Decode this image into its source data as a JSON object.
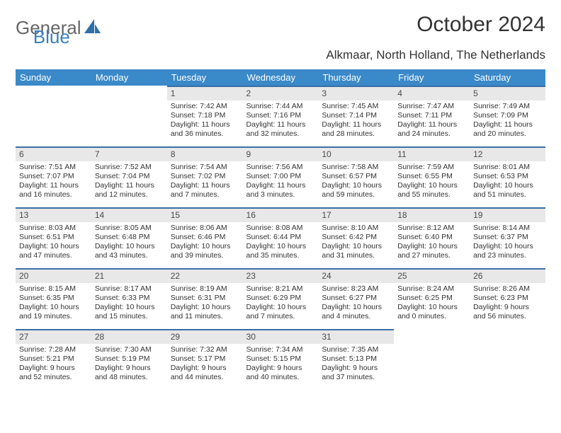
{
  "brand": {
    "part1": "General",
    "part2": "Blue"
  },
  "title": "October 2024",
  "location": "Alkmaar, North Holland, The Netherlands",
  "colors": {
    "header_bg": "#3a89c9",
    "header_text": "#ffffff",
    "daynum_bg": "#e8e8e8",
    "daynum_border": "#3a6fa5",
    "body_text": "#333333",
    "page_bg": "#ffffff"
  },
  "weekdays": [
    "Sunday",
    "Monday",
    "Tuesday",
    "Wednesday",
    "Thursday",
    "Friday",
    "Saturday"
  ],
  "weeks": [
    [
      {
        "n": "",
        "sr": "",
        "ss": "",
        "dl": ""
      },
      {
        "n": "",
        "sr": "",
        "ss": "",
        "dl": ""
      },
      {
        "n": "1",
        "sr": "7:42 AM",
        "ss": "7:18 PM",
        "dl": "11 hours and 36 minutes."
      },
      {
        "n": "2",
        "sr": "7:44 AM",
        "ss": "7:16 PM",
        "dl": "11 hours and 32 minutes."
      },
      {
        "n": "3",
        "sr": "7:45 AM",
        "ss": "7:14 PM",
        "dl": "11 hours and 28 minutes."
      },
      {
        "n": "4",
        "sr": "7:47 AM",
        "ss": "7:11 PM",
        "dl": "11 hours and 24 minutes."
      },
      {
        "n": "5",
        "sr": "7:49 AM",
        "ss": "7:09 PM",
        "dl": "11 hours and 20 minutes."
      }
    ],
    [
      {
        "n": "6",
        "sr": "7:51 AM",
        "ss": "7:07 PM",
        "dl": "11 hours and 16 minutes."
      },
      {
        "n": "7",
        "sr": "7:52 AM",
        "ss": "7:04 PM",
        "dl": "11 hours and 12 minutes."
      },
      {
        "n": "8",
        "sr": "7:54 AM",
        "ss": "7:02 PM",
        "dl": "11 hours and 7 minutes."
      },
      {
        "n": "9",
        "sr": "7:56 AM",
        "ss": "7:00 PM",
        "dl": "11 hours and 3 minutes."
      },
      {
        "n": "10",
        "sr": "7:58 AM",
        "ss": "6:57 PM",
        "dl": "10 hours and 59 minutes."
      },
      {
        "n": "11",
        "sr": "7:59 AM",
        "ss": "6:55 PM",
        "dl": "10 hours and 55 minutes."
      },
      {
        "n": "12",
        "sr": "8:01 AM",
        "ss": "6:53 PM",
        "dl": "10 hours and 51 minutes."
      }
    ],
    [
      {
        "n": "13",
        "sr": "8:03 AM",
        "ss": "6:51 PM",
        "dl": "10 hours and 47 minutes."
      },
      {
        "n": "14",
        "sr": "8:05 AM",
        "ss": "6:48 PM",
        "dl": "10 hours and 43 minutes."
      },
      {
        "n": "15",
        "sr": "8:06 AM",
        "ss": "6:46 PM",
        "dl": "10 hours and 39 minutes."
      },
      {
        "n": "16",
        "sr": "8:08 AM",
        "ss": "6:44 PM",
        "dl": "10 hours and 35 minutes."
      },
      {
        "n": "17",
        "sr": "8:10 AM",
        "ss": "6:42 PM",
        "dl": "10 hours and 31 minutes."
      },
      {
        "n": "18",
        "sr": "8:12 AM",
        "ss": "6:40 PM",
        "dl": "10 hours and 27 minutes."
      },
      {
        "n": "19",
        "sr": "8:14 AM",
        "ss": "6:37 PM",
        "dl": "10 hours and 23 minutes."
      }
    ],
    [
      {
        "n": "20",
        "sr": "8:15 AM",
        "ss": "6:35 PM",
        "dl": "10 hours and 19 minutes."
      },
      {
        "n": "21",
        "sr": "8:17 AM",
        "ss": "6:33 PM",
        "dl": "10 hours and 15 minutes."
      },
      {
        "n": "22",
        "sr": "8:19 AM",
        "ss": "6:31 PM",
        "dl": "10 hours and 11 minutes."
      },
      {
        "n": "23",
        "sr": "8:21 AM",
        "ss": "6:29 PM",
        "dl": "10 hours and 7 minutes."
      },
      {
        "n": "24",
        "sr": "8:23 AM",
        "ss": "6:27 PM",
        "dl": "10 hours and 4 minutes."
      },
      {
        "n": "25",
        "sr": "8:24 AM",
        "ss": "6:25 PM",
        "dl": "10 hours and 0 minutes."
      },
      {
        "n": "26",
        "sr": "8:26 AM",
        "ss": "6:23 PM",
        "dl": "9 hours and 56 minutes."
      }
    ],
    [
      {
        "n": "27",
        "sr": "7:28 AM",
        "ss": "5:21 PM",
        "dl": "9 hours and 52 minutes."
      },
      {
        "n": "28",
        "sr": "7:30 AM",
        "ss": "5:19 PM",
        "dl": "9 hours and 48 minutes."
      },
      {
        "n": "29",
        "sr": "7:32 AM",
        "ss": "5:17 PM",
        "dl": "9 hours and 44 minutes."
      },
      {
        "n": "30",
        "sr": "7:34 AM",
        "ss": "5:15 PM",
        "dl": "9 hours and 40 minutes."
      },
      {
        "n": "31",
        "sr": "7:35 AM",
        "ss": "5:13 PM",
        "dl": "9 hours and 37 minutes."
      },
      {
        "n": "",
        "sr": "",
        "ss": "",
        "dl": ""
      },
      {
        "n": "",
        "sr": "",
        "ss": "",
        "dl": ""
      }
    ]
  ],
  "labels": {
    "sunrise": "Sunrise:",
    "sunset": "Sunset:",
    "daylight": "Daylight:"
  }
}
